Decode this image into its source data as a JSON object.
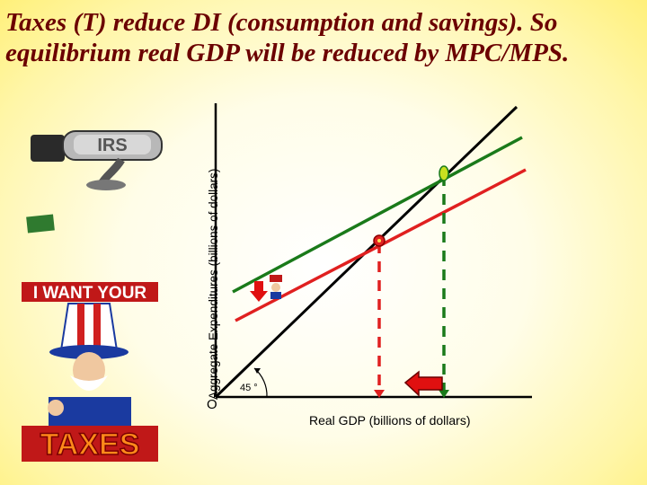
{
  "slide": {
    "title_line1": "Taxes (T) reduce DI (consumption and savings).  So",
    "title_line2": "equilibrium real GDP will be reduced by MPC/MPS."
  },
  "graph": {
    "y_axis_label": "Aggregate Expenditures (billions of dollars)",
    "x_axis_label": "Real GDP (billions of dollars)",
    "origin_label": "O",
    "angle_label": "45 °"
  },
  "clipart": {
    "irs_label": "IRS",
    "banner_text": "I WANT YOUR",
    "taxes_text": "TAXES"
  },
  "colors": {
    "title": "#6b0000",
    "original_ae_line": "#1a7a1a",
    "reduced_ae_line": "#e02020",
    "forty_five_line": "#000000",
    "shift_arrow": "#e01010"
  }
}
